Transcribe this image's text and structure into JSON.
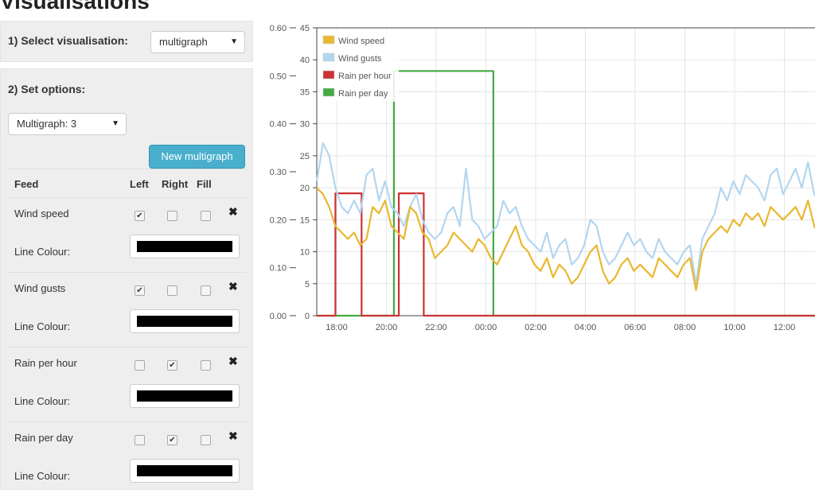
{
  "page": {
    "title": "Visualisations"
  },
  "sidebar": {
    "select_label": "1) Select visualisation:",
    "visualisation_value": "multigraph",
    "options_label": "2) Set options:",
    "multigraph_value": "Multigraph: 3",
    "new_multigraph_label": "New multigraph",
    "table_headers": {
      "feed": "Feed",
      "left": "Left",
      "right": "Right",
      "fill": "Fill"
    },
    "colour_label": "Line Colour:",
    "feeds": [
      {
        "name": "Wind speed",
        "left": true,
        "right": false,
        "fill": false,
        "colour": "#000000"
      },
      {
        "name": "Wind gusts",
        "left": true,
        "right": false,
        "fill": false,
        "colour": "#000000"
      },
      {
        "name": "Rain per hour",
        "left": false,
        "right": true,
        "fill": false,
        "colour": "#000000"
      },
      {
        "name": "Rain per day",
        "left": false,
        "right": true,
        "fill": false,
        "colour": "#000000"
      }
    ]
  },
  "chart_data": {
    "type": "line",
    "legend_position": "top-left",
    "grid": true,
    "x_ticks": [
      "18:00",
      "20:00",
      "22:00",
      "00:00",
      "02:00",
      "04:00",
      "06:00",
      "08:00",
      "10:00",
      "12:00"
    ],
    "y_left": {
      "range": [
        0,
        45
      ],
      "ticks": [
        "0",
        "5",
        "10",
        "15",
        "20",
        "25",
        "30",
        "35",
        "40",
        "45"
      ]
    },
    "y_right": {
      "range": [
        0,
        0.6
      ],
      "ticks": [
        "0.00",
        "0.10",
        "0.20",
        "0.30",
        "0.40",
        "0.50",
        "0.60"
      ]
    },
    "x_unit": "hours since 16:30 (first day)",
    "x_range": [
      0,
      20.3
    ],
    "series": [
      {
        "name": "Wind speed",
        "axis": "left",
        "color": "#e8b830",
        "points": [
          [
            0,
            20
          ],
          [
            0.25,
            19
          ],
          [
            0.5,
            17
          ],
          [
            0.75,
            14
          ],
          [
            1,
            13
          ],
          [
            1.25,
            12
          ],
          [
            1.5,
            13
          ],
          [
            1.75,
            11
          ],
          [
            2,
            12
          ],
          [
            2.25,
            17
          ],
          [
            2.5,
            16
          ],
          [
            2.75,
            18
          ],
          [
            3,
            14
          ],
          [
            3.25,
            13
          ],
          [
            3.5,
            12
          ],
          [
            3.75,
            17
          ],
          [
            4,
            16
          ],
          [
            4.25,
            13
          ],
          [
            4.5,
            12
          ],
          [
            4.75,
            9
          ],
          [
            5,
            10
          ],
          [
            5.25,
            11
          ],
          [
            5.5,
            13
          ],
          [
            5.75,
            12
          ],
          [
            6,
            11
          ],
          [
            6.25,
            10
          ],
          [
            6.5,
            12
          ],
          [
            6.75,
            11
          ],
          [
            7,
            9
          ],
          [
            7.25,
            8
          ],
          [
            7.5,
            10
          ],
          [
            7.75,
            12
          ],
          [
            8,
            14
          ],
          [
            8.25,
            11
          ],
          [
            8.5,
            10
          ],
          [
            8.75,
            8
          ],
          [
            9,
            7
          ],
          [
            9.25,
            9
          ],
          [
            9.5,
            6
          ],
          [
            9.75,
            8
          ],
          [
            10,
            7
          ],
          [
            10.25,
            5
          ],
          [
            10.5,
            6
          ],
          [
            10.75,
            8
          ],
          [
            11,
            10
          ],
          [
            11.25,
            11
          ],
          [
            11.5,
            7
          ],
          [
            11.75,
            5
          ],
          [
            12,
            6
          ],
          [
            12.25,
            8
          ],
          [
            12.5,
            9
          ],
          [
            12.75,
            7
          ],
          [
            13,
            8
          ],
          [
            13.25,
            7
          ],
          [
            13.5,
            6
          ],
          [
            13.75,
            9
          ],
          [
            14,
            8
          ],
          [
            14.25,
            7
          ],
          [
            14.5,
            6
          ],
          [
            14.75,
            8
          ],
          [
            15,
            9
          ],
          [
            15.25,
            4
          ],
          [
            15.5,
            10
          ],
          [
            15.75,
            12
          ],
          [
            16,
            13
          ],
          [
            16.25,
            14
          ],
          [
            16.5,
            13
          ],
          [
            16.75,
            15
          ],
          [
            17,
            14
          ],
          [
            17.25,
            16
          ],
          [
            17.5,
            15
          ],
          [
            17.75,
            16
          ],
          [
            18,
            14
          ],
          [
            18.25,
            17
          ],
          [
            18.5,
            16
          ],
          [
            18.75,
            15
          ],
          [
            19,
            16
          ],
          [
            19.25,
            17
          ],
          [
            19.5,
            15
          ],
          [
            19.75,
            18
          ],
          [
            20,
            14
          ],
          [
            20.3,
            12
          ]
        ]
      },
      {
        "name": "Wind gusts",
        "axis": "left",
        "color": "#b3d6f0",
        "points": [
          [
            0,
            21
          ],
          [
            0.25,
            27
          ],
          [
            0.5,
            25
          ],
          [
            0.75,
            20
          ],
          [
            1,
            17
          ],
          [
            1.25,
            16
          ],
          [
            1.5,
            18
          ],
          [
            1.75,
            16
          ],
          [
            2,
            22
          ],
          [
            2.25,
            23
          ],
          [
            2.5,
            18
          ],
          [
            2.75,
            21
          ],
          [
            3,
            17
          ],
          [
            3.25,
            16
          ],
          [
            3.5,
            14
          ],
          [
            3.75,
            17
          ],
          [
            4,
            19
          ],
          [
            4.25,
            15
          ],
          [
            4.5,
            13
          ],
          [
            4.75,
            12
          ],
          [
            5,
            13
          ],
          [
            5.25,
            16
          ],
          [
            5.5,
            17
          ],
          [
            5.75,
            14
          ],
          [
            6,
            23
          ],
          [
            6.25,
            15
          ],
          [
            6.5,
            14
          ],
          [
            6.75,
            12
          ],
          [
            7,
            13
          ],
          [
            7.25,
            14
          ],
          [
            7.5,
            18
          ],
          [
            7.75,
            16
          ],
          [
            8,
            17
          ],
          [
            8.25,
            14
          ],
          [
            8.5,
            12
          ],
          [
            8.75,
            11
          ],
          [
            9,
            10
          ],
          [
            9.25,
            13
          ],
          [
            9.5,
            9
          ],
          [
            9.75,
            11
          ],
          [
            10,
            12
          ],
          [
            10.25,
            8
          ],
          [
            10.5,
            9
          ],
          [
            10.75,
            11
          ],
          [
            11,
            15
          ],
          [
            11.25,
            14
          ],
          [
            11.5,
            10
          ],
          [
            11.75,
            8
          ],
          [
            12,
            9
          ],
          [
            12.25,
            11
          ],
          [
            12.5,
            13
          ],
          [
            12.75,
            11
          ],
          [
            13,
            12
          ],
          [
            13.25,
            10
          ],
          [
            13.5,
            9
          ],
          [
            13.75,
            12
          ],
          [
            14,
            10
          ],
          [
            14.25,
            9
          ],
          [
            14.5,
            8
          ],
          [
            14.75,
            10
          ],
          [
            15,
            11
          ],
          [
            15.25,
            5
          ],
          [
            15.5,
            12
          ],
          [
            15.75,
            14
          ],
          [
            16,
            16
          ],
          [
            16.25,
            20
          ],
          [
            16.5,
            18
          ],
          [
            16.75,
            21
          ],
          [
            17,
            19
          ],
          [
            17.25,
            22
          ],
          [
            17.5,
            21
          ],
          [
            17.75,
            20
          ],
          [
            18,
            18
          ],
          [
            18.25,
            22
          ],
          [
            18.5,
            23
          ],
          [
            18.75,
            19
          ],
          [
            19,
            21
          ],
          [
            19.25,
            23
          ],
          [
            19.5,
            20
          ],
          [
            19.75,
            24
          ],
          [
            20,
            19
          ],
          [
            20.3,
            17
          ]
        ]
      },
      {
        "name": "Rain per hour",
        "axis": "right",
        "color": "#cc3333",
        "points": [
          [
            0,
            0
          ],
          [
            0.75,
            0
          ],
          [
            0.75,
            0.255
          ],
          [
            1.8,
            0.255
          ],
          [
            1.8,
            0
          ],
          [
            3.3,
            0
          ],
          [
            3.3,
            0.255
          ],
          [
            4.3,
            0.255
          ],
          [
            4.3,
            0
          ],
          [
            20.3,
            0
          ]
        ]
      },
      {
        "name": "Rain per day",
        "axis": "right",
        "color": "#44aa44",
        "points": [
          [
            0,
            0
          ],
          [
            3.1,
            0
          ],
          [
            3.1,
            0.51
          ],
          [
            7.1,
            0.51
          ],
          [
            7.1,
            0
          ],
          [
            20.3,
            0
          ]
        ]
      }
    ]
  }
}
